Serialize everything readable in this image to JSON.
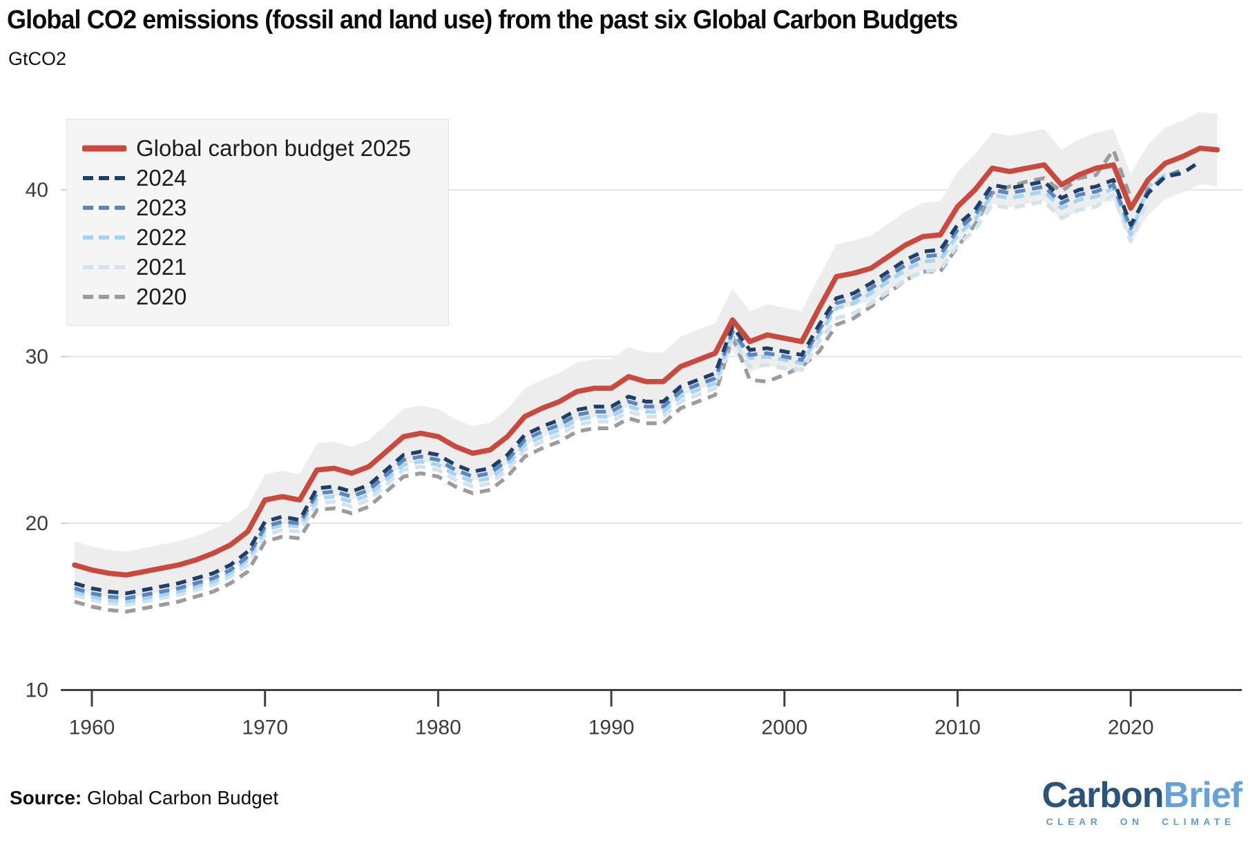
{
  "header": {
    "title": "Global CO2 emissions (fossil and land use) from the past six Global Carbon Budgets",
    "subtitle": "GtCO2"
  },
  "source": {
    "label": "Source:",
    "value": " Global Carbon Budget"
  },
  "logo": {
    "part1": "Carbon",
    "part2": "Brief",
    "tagline": "CLEAR ON CLIMATE",
    "part1_color": "#2a547a",
    "part2_color": "#66a2d8",
    "tagline_color": "#5f9cd0"
  },
  "chart_data": {
    "type": "line",
    "title": "Global CO2 emissions (fossil and land use) from the past six Global Carbon Budgets",
    "ylabel": "GtCO2",
    "xlabel": "",
    "grid": "horizontal",
    "legend_position": "top-left",
    "xlim": [
      1958.5,
      2025.5
    ],
    "ylim": [
      10,
      44.6
    ],
    "x_ticks": [
      1960,
      1970,
      1980,
      1990,
      2000,
      2010,
      2020
    ],
    "y_ticks": [
      10,
      20,
      30,
      40
    ],
    "uncertainty_band": {
      "series": "Global carbon budget 2025",
      "halfwidth_base": 0.9,
      "halfwidth_per_unit": 0.03,
      "color": "#ebebeb"
    },
    "series": [
      {
        "name": "Global carbon budget 2025",
        "color": "#c94a3c",
        "style": "solid",
        "start_year": 1959,
        "end_year": 2025,
        "values": [
          17.5,
          17.2,
          17.0,
          16.9,
          17.1,
          17.3,
          17.5,
          17.8,
          18.2,
          18.7,
          19.5,
          21.4,
          21.6,
          21.4,
          23.2,
          23.3,
          23.0,
          23.4,
          24.3,
          25.2,
          25.4,
          25.2,
          24.6,
          24.2,
          24.4,
          25.2,
          26.4,
          26.9,
          27.3,
          27.9,
          28.1,
          28.1,
          28.8,
          28.5,
          28.5,
          29.4,
          29.8,
          30.2,
          32.2,
          30.9,
          31.3,
          31.1,
          30.9,
          32.9,
          34.8,
          35.0,
          35.3,
          36.0,
          36.7,
          37.2,
          37.3,
          39.0,
          40.0,
          41.3,
          41.1,
          41.3,
          41.5,
          40.3,
          40.9,
          41.3,
          41.5,
          38.9,
          40.6,
          41.6,
          42.0,
          42.5,
          42.4
        ]
      },
      {
        "name": "2024",
        "color": "#1e3f66",
        "style": "dashed",
        "start_year": 1959,
        "end_year": 2024,
        "values": [
          16.4,
          16.1,
          15.9,
          15.8,
          16.0,
          16.2,
          16.4,
          16.7,
          17.0,
          17.5,
          18.3,
          20.1,
          20.4,
          20.2,
          22.1,
          22.2,
          21.9,
          22.3,
          23.2,
          24.1,
          24.3,
          24.1,
          23.5,
          23.1,
          23.3,
          24.1,
          25.3,
          25.8,
          26.2,
          26.8,
          27.0,
          27.0,
          27.6,
          27.3,
          27.3,
          28.2,
          28.6,
          29.0,
          31.8,
          30.4,
          30.5,
          30.3,
          30.1,
          31.9,
          33.5,
          33.8,
          34.4,
          35.1,
          35.8,
          36.3,
          36.4,
          37.9,
          38.8,
          40.3,
          40.1,
          40.3,
          40.5,
          39.5,
          40.0,
          40.2,
          40.6,
          37.9,
          39.8,
          40.8,
          41.0,
          41.7
        ]
      },
      {
        "name": "2023",
        "color": "#5b87bd",
        "style": "dashed",
        "start_year": 1959,
        "end_year": 2023,
        "values": [
          16.1,
          15.8,
          15.6,
          15.5,
          15.7,
          15.9,
          16.1,
          16.4,
          16.7,
          17.2,
          18.0,
          19.8,
          20.1,
          20.0,
          21.8,
          21.9,
          21.6,
          22.0,
          22.9,
          23.8,
          24.0,
          23.8,
          23.2,
          22.8,
          23.0,
          23.8,
          25.0,
          25.5,
          25.9,
          26.5,
          26.7,
          26.7,
          27.3,
          27.0,
          27.0,
          27.9,
          28.3,
          28.7,
          31.5,
          30.1,
          30.2,
          30.0,
          29.8,
          31.6,
          33.2,
          33.5,
          34.1,
          34.8,
          35.5,
          36.0,
          36.1,
          37.6,
          38.5,
          40.0,
          39.8,
          40.0,
          40.2,
          39.2,
          39.7,
          39.9,
          40.3,
          37.7,
          40.0,
          40.8,
          41.2
        ]
      },
      {
        "name": "2022",
        "color": "#a5d5f2",
        "style": "dashed",
        "start_year": 1959,
        "end_year": 2022,
        "values": [
          15.9,
          15.6,
          15.4,
          15.3,
          15.5,
          15.7,
          15.9,
          16.2,
          16.5,
          17.0,
          17.8,
          19.6,
          19.9,
          19.8,
          21.5,
          21.6,
          21.3,
          21.7,
          22.6,
          23.5,
          23.7,
          23.5,
          22.9,
          22.5,
          22.7,
          23.5,
          24.7,
          25.2,
          25.6,
          26.2,
          26.4,
          26.4,
          27.0,
          26.7,
          26.7,
          27.6,
          28.0,
          28.4,
          31.4,
          29.9,
          30.0,
          29.8,
          29.6,
          31.3,
          32.9,
          33.2,
          33.8,
          34.5,
          35.2,
          35.7,
          35.8,
          37.3,
          38.2,
          39.7,
          39.5,
          39.7,
          39.9,
          38.9,
          39.4,
          39.6,
          40.1,
          37.3,
          40.2,
          40.9
        ]
      },
      {
        "name": "2021",
        "color": "#d2e2ee",
        "style": "dashed",
        "start_year": 1959,
        "end_year": 2021,
        "values": [
          15.7,
          15.4,
          15.2,
          15.1,
          15.3,
          15.5,
          15.7,
          16.0,
          16.3,
          16.8,
          17.5,
          19.3,
          19.6,
          19.5,
          21.2,
          21.3,
          21.0,
          21.4,
          22.3,
          23.2,
          23.4,
          23.2,
          22.6,
          22.2,
          22.4,
          23.2,
          24.4,
          24.9,
          25.3,
          25.9,
          26.1,
          26.1,
          26.7,
          26.4,
          26.4,
          27.3,
          27.7,
          28.1,
          31.1,
          29.4,
          29.5,
          29.3,
          29.2,
          30.9,
          32.3,
          32.6,
          33.2,
          33.9,
          34.6,
          35.1,
          35.2,
          36.7,
          37.6,
          39.1,
          38.9,
          39.1,
          39.3,
          38.3,
          38.8,
          39.0,
          39.7,
          36.9,
          39.5
        ]
      },
      {
        "name": "2020",
        "color": "#9c9c9c",
        "style": "dashed",
        "start_year": 1959,
        "end_year": 2020,
        "values": [
          15.3,
          15.0,
          14.8,
          14.7,
          14.9,
          15.1,
          15.3,
          15.6,
          15.9,
          16.4,
          17.1,
          18.9,
          19.2,
          19.1,
          20.8,
          20.9,
          20.6,
          21.0,
          21.9,
          22.8,
          23.0,
          22.8,
          22.2,
          21.8,
          22.0,
          22.8,
          24.0,
          24.5,
          24.9,
          25.5,
          25.7,
          25.7,
          26.3,
          26.0,
          26.0,
          26.9,
          27.3,
          27.7,
          31.2,
          28.6,
          28.5,
          28.9,
          29.4,
          30.3,
          31.9,
          32.3,
          33.0,
          33.8,
          34.6,
          35.1,
          35.1,
          36.6,
          37.9,
          39.8,
          40.2,
          40.5,
          40.7,
          39.9,
          40.7,
          40.9,
          42.4,
          39.5
        ]
      }
    ]
  }
}
